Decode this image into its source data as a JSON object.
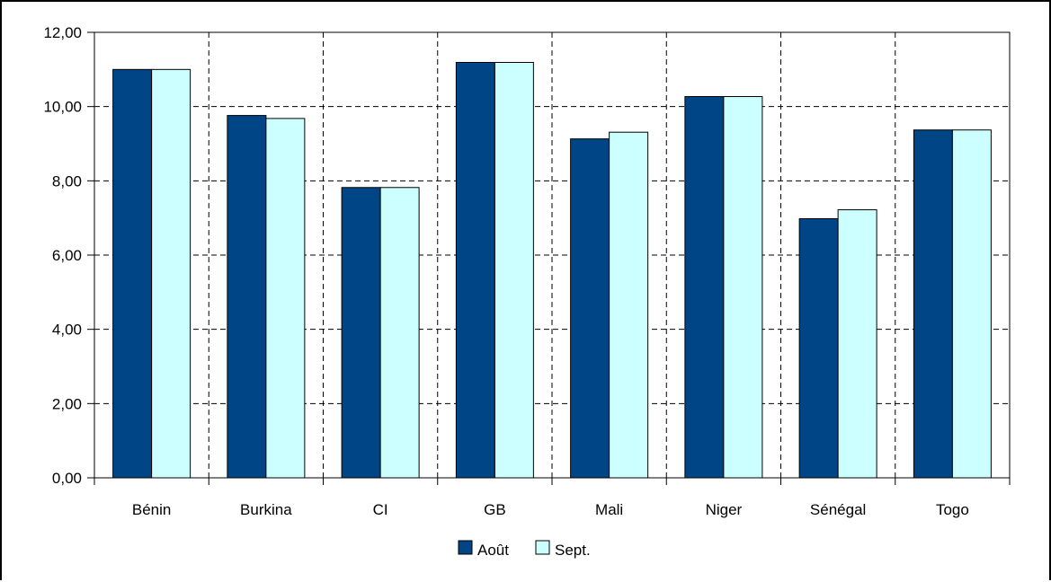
{
  "chart_data": {
    "type": "bar",
    "categories": [
      "Bénin",
      "Burkina",
      "CI",
      "GB",
      "Mali",
      "Niger",
      "Sénégal",
      "Togo"
    ],
    "series": [
      {
        "name": "Août",
        "color": "#004586",
        "values": [
          11.0,
          9.76,
          7.82,
          11.19,
          9.13,
          10.27,
          6.98,
          9.37
        ]
      },
      {
        "name": "Sept.",
        "color": "#ccffff",
        "values": [
          11.0,
          9.68,
          7.82,
          11.19,
          9.31,
          10.27,
          7.22,
          9.37
        ]
      }
    ],
    "ylim": [
      0,
      12
    ],
    "yticks": [
      "0,00",
      "2,00",
      "4,00",
      "6,00",
      "8,00",
      "10,00",
      "12,00"
    ],
    "grid": true,
    "legend_position": "bottom"
  }
}
